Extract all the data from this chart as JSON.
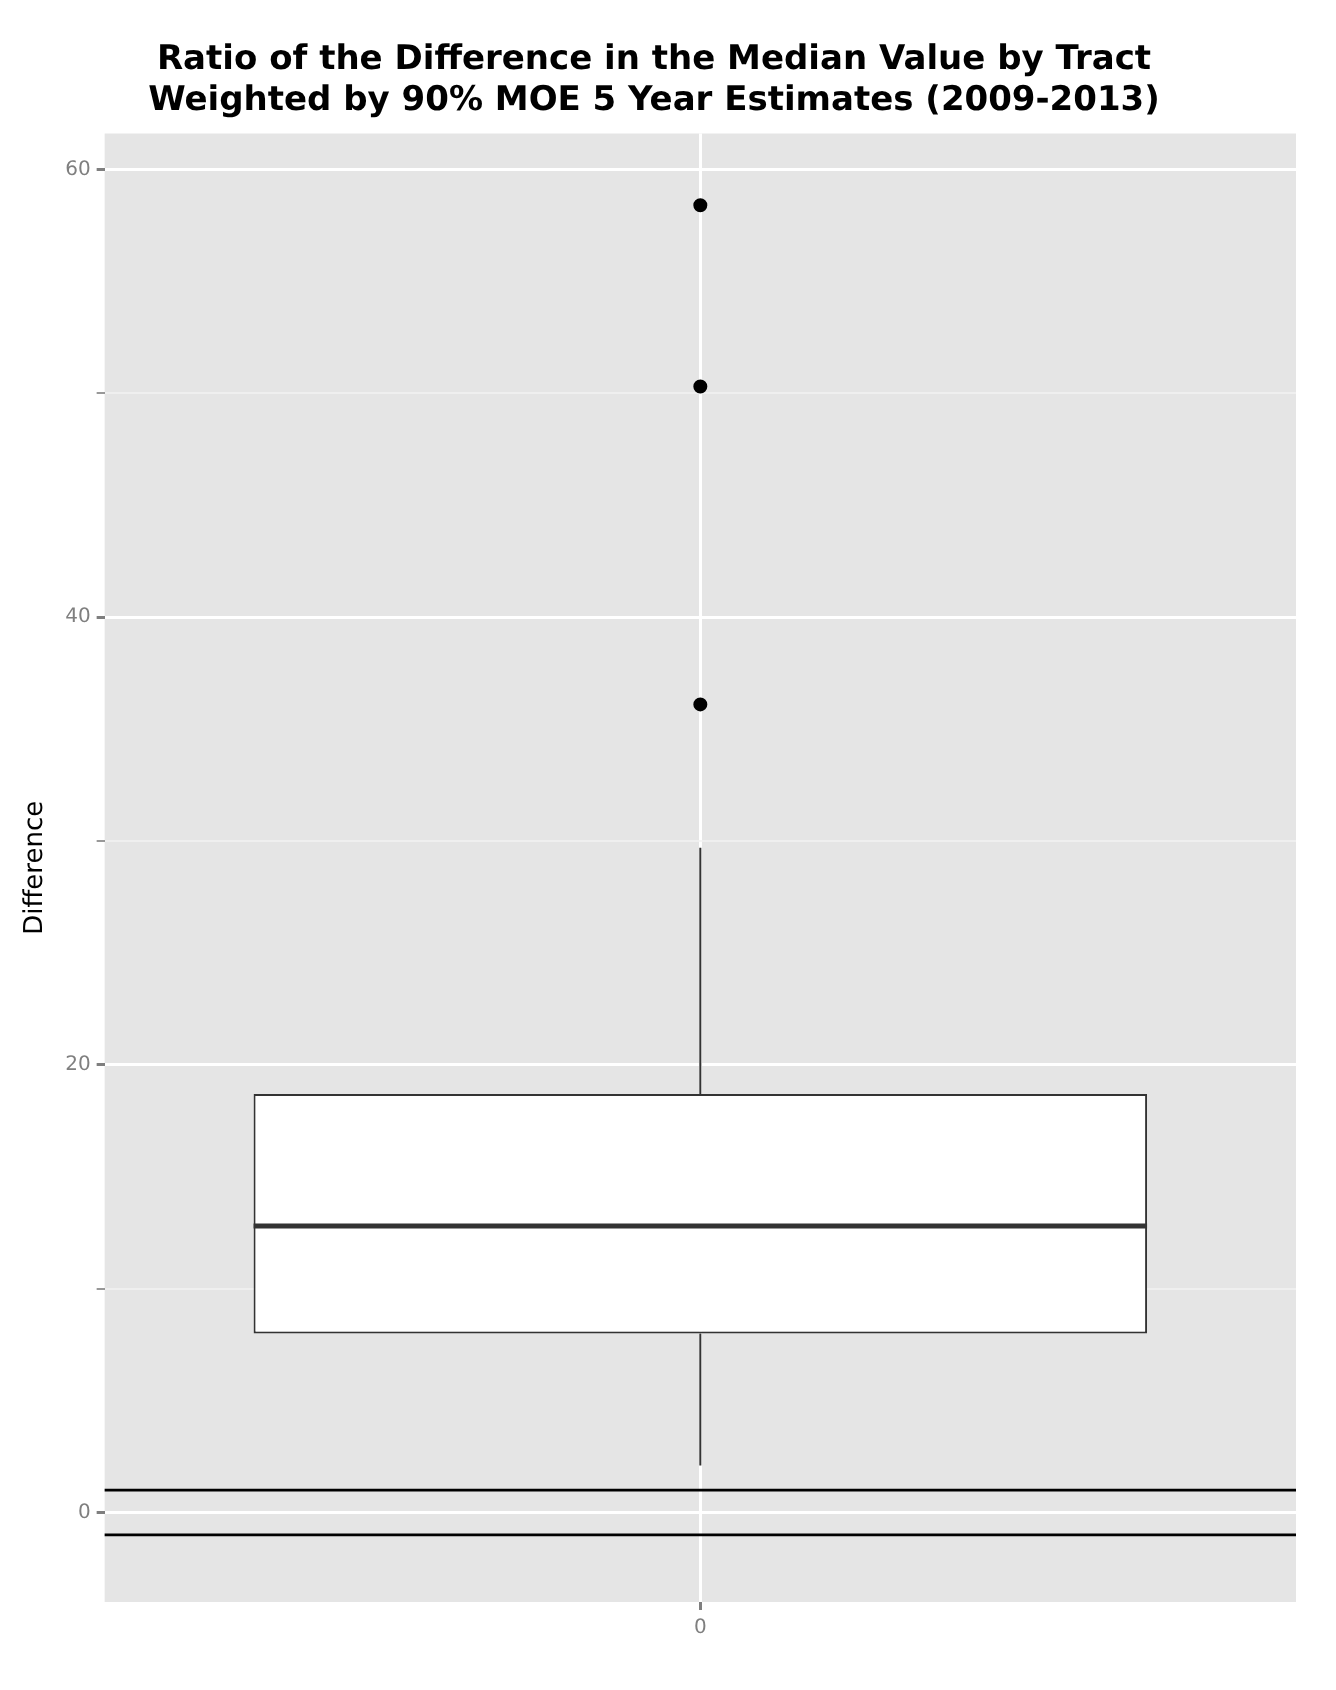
{
  "chart_data": {
    "type": "box",
    "title": "Ratio of the Difference in the Median Value by Tract\nWeighted by 90% MOE 5 Year Estimates (2009-2013)",
    "ylabel": "Difference",
    "categories": [
      "0"
    ],
    "boxes": [
      {
        "low": 2.1,
        "q1": 8.0,
        "median": 12.8,
        "q3": 18.7,
        "high": 29.7,
        "outliers": [
          36.1,
          50.3,
          58.4
        ]
      }
    ],
    "ylim": [
      -4,
      61.6
    ],
    "yticks": [
      0,
      {
        "value": 10,
        "label": null
      },
      20,
      {
        "value": 30,
        "label": null
      },
      40,
      {
        "value": 50,
        "label": null
      },
      60
    ],
    "ref_lines": [
      {
        "axis": "y",
        "value": 1,
        "color": "#000000"
      },
      {
        "axis": "y",
        "value": -1,
        "color": "#000000"
      }
    ],
    "grid": true,
    "legend": false
  }
}
